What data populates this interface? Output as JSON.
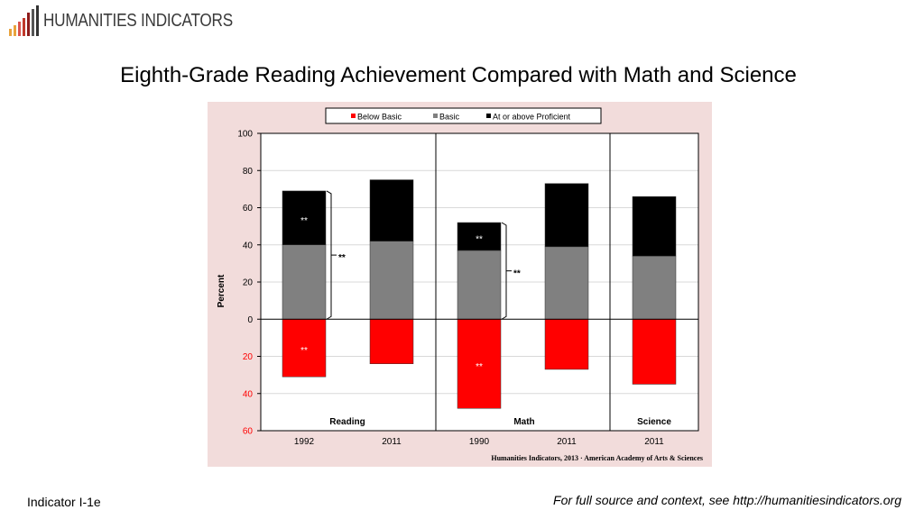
{
  "header": {
    "logo_text": "HUMANITIES INDICATORS",
    "logo_bar_colors": [
      "#e8a33d",
      "#e8a33d",
      "#d9534f",
      "#c0392b",
      "#8e1b1b",
      "#555555",
      "#333333"
    ]
  },
  "slide": {
    "title": "Eighth-Grade Reading Achievement Compared with Math and Science"
  },
  "footer": {
    "indicator": "Indicator I-1e",
    "source_note": "For full source and context, see http://humanitiesindicators.org"
  },
  "chart_data": {
    "type": "bar",
    "stacked": "diverging",
    "title": "",
    "ylabel": "Percent",
    "xlabel": "",
    "ylim": [
      -60,
      100
    ],
    "yticks": [
      {
        "value": 100,
        "label": "100"
      },
      {
        "value": 80,
        "label": "80"
      },
      {
        "value": 60,
        "label": "60"
      },
      {
        "value": 40,
        "label": "40"
      },
      {
        "value": 20,
        "label": "20"
      },
      {
        "value": 0,
        "label": "0"
      },
      {
        "value": -20,
        "label": "20"
      },
      {
        "value": -40,
        "label": "40"
      },
      {
        "value": -60,
        "label": "60"
      }
    ],
    "categories": [
      "1992",
      "2011",
      "1990",
      "2011",
      "2011"
    ],
    "groups": [
      {
        "label": "Reading",
        "categories": [
          0,
          1
        ]
      },
      {
        "label": "Math",
        "categories": [
          2,
          3
        ]
      },
      {
        "label": "Science",
        "categories": [
          4
        ]
      }
    ],
    "series": [
      {
        "name": "Below Basic",
        "color": "#ff0000",
        "values": [
          31,
          24,
          48,
          27,
          35
        ]
      },
      {
        "name": "Basic",
        "color": "#808080",
        "values": [
          40,
          42,
          37,
          39,
          34
        ]
      },
      {
        "name": "At or above Proficient",
        "color": "#000000",
        "values": [
          29,
          33,
          15,
          34,
          32
        ]
      }
    ],
    "annotations": [
      {
        "text": "**",
        "category": 0,
        "series": "At or above Proficient"
      },
      {
        "text": "**",
        "category": 0,
        "series": "Below Basic"
      },
      {
        "text": "**",
        "category": 2,
        "series": "At or above Proficient"
      },
      {
        "text": "**",
        "category": 2,
        "series": "Below Basic"
      },
      {
        "text": "**",
        "bracket_category": 0,
        "range": [
          0,
          69
        ]
      },
      {
        "text": "**",
        "bracket_category": 2,
        "range": [
          0,
          52
        ]
      }
    ],
    "legend_position": "top",
    "grid": true,
    "source_note": "Humanities Indicators, 2013 · American Academy of Arts & Sciences"
  }
}
